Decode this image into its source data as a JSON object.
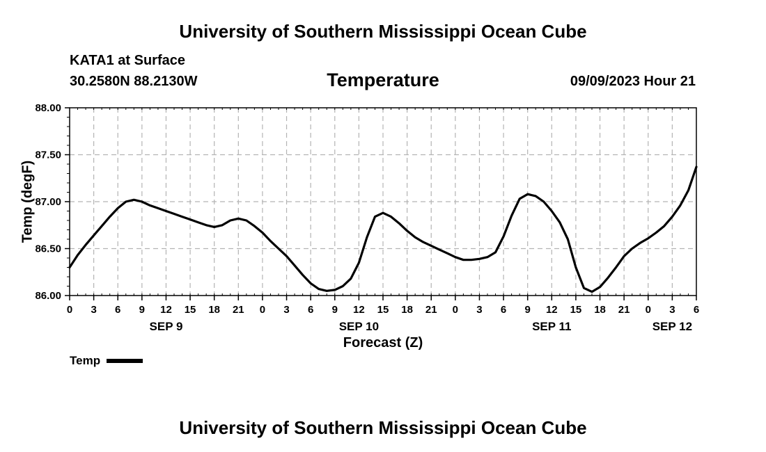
{
  "header": {
    "title": "University of Southern Mississippi Ocean Cube",
    "station": "KATA1 at Surface",
    "coordinates": "30.2580N  88.2130W",
    "variable": "Temperature",
    "datetime": "09/09/2023 Hour 21"
  },
  "footer": {
    "title": "University of Southern Mississippi Ocean Cube"
  },
  "chart_data": {
    "type": "line",
    "title": "Temperature",
    "xlabel": "Forecast (Z)",
    "ylabel": "Temp (degF)",
    "ylim": [
      86.0,
      88.0
    ],
    "y_ticks": [
      "86.00",
      "86.50",
      "87.00",
      "87.50",
      "88.00"
    ],
    "x_unit": "forecast hours from SEP 9 00Z",
    "xlim": [
      0,
      78
    ],
    "x_tick_labels": [
      "0",
      "3",
      "6",
      "9",
      "12",
      "15",
      "18",
      "21",
      "0",
      "3",
      "6",
      "9",
      "12",
      "15",
      "18",
      "21",
      "0",
      "3",
      "6",
      "9",
      "12",
      "15",
      "18",
      "21",
      "0",
      "3",
      "6"
    ],
    "date_labels": [
      {
        "label": "SEP 9",
        "hour": 12
      },
      {
        "label": "SEP 10",
        "hour": 36
      },
      {
        "label": "SEP 11",
        "hour": 60
      },
      {
        "label": "SEP 12",
        "hour": 75
      }
    ],
    "grid": true,
    "legend": [
      {
        "name": "Temp",
        "position": "bottom-left"
      }
    ],
    "series": [
      {
        "name": "Temp",
        "x": [
          0,
          1,
          2,
          3,
          4,
          5,
          6,
          7,
          8,
          9,
          10,
          11,
          12,
          13,
          14,
          15,
          16,
          17,
          18,
          19,
          20,
          21,
          22,
          23,
          24,
          25,
          26,
          27,
          28,
          29,
          30,
          31,
          32,
          33,
          34,
          35,
          36,
          37,
          38,
          39,
          40,
          41,
          42,
          43,
          44,
          45,
          46,
          47,
          48,
          49,
          50,
          51,
          52,
          53,
          54,
          55,
          56,
          57,
          58,
          59,
          60,
          61,
          62,
          63,
          64,
          65,
          66,
          67,
          68,
          69,
          70,
          71,
          72,
          73,
          74,
          75,
          76,
          77,
          78
        ],
        "values": [
          86.3,
          86.43,
          86.54,
          86.64,
          86.74,
          86.84,
          86.93,
          87.0,
          87.02,
          87.0,
          86.96,
          86.93,
          86.9,
          86.87,
          86.84,
          86.81,
          86.78,
          86.75,
          86.73,
          86.75,
          86.8,
          86.82,
          86.8,
          86.74,
          86.67,
          86.58,
          86.5,
          86.42,
          86.32,
          86.22,
          86.13,
          86.07,
          86.05,
          86.06,
          86.1,
          86.18,
          86.35,
          86.62,
          86.84,
          86.88,
          86.84,
          86.77,
          86.69,
          86.62,
          86.57,
          86.53,
          86.49,
          86.45,
          86.41,
          86.38,
          86.38,
          86.39,
          86.41,
          86.46,
          86.63,
          86.85,
          87.03,
          87.08,
          87.06,
          87.0,
          86.9,
          86.78,
          86.6,
          86.3,
          86.08,
          86.04,
          86.09,
          86.19,
          86.3,
          86.42,
          86.5,
          86.56,
          86.61,
          86.67,
          86.74,
          86.84,
          86.96,
          87.12,
          87.37
        ]
      }
    ]
  }
}
